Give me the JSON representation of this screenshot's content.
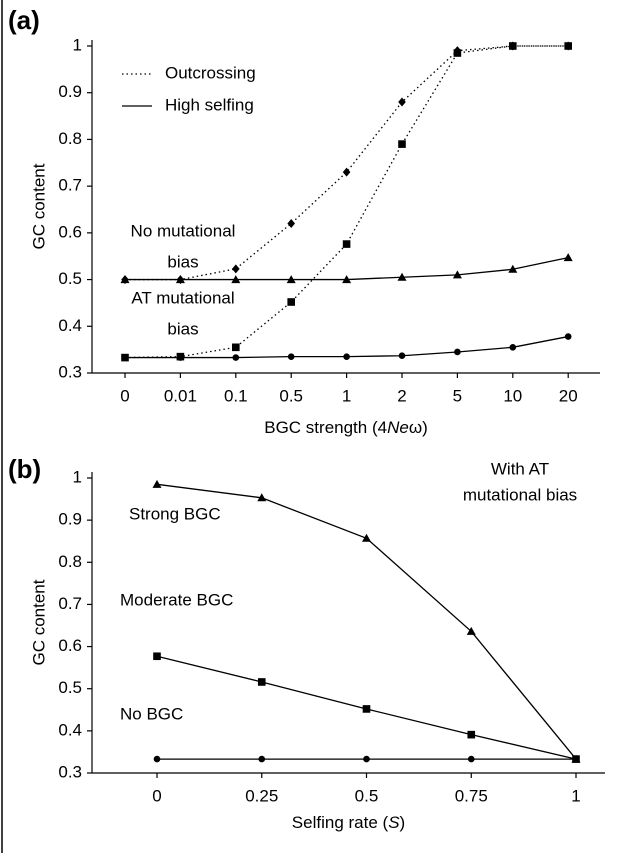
{
  "chart_data": [
    {
      "type": "line",
      "panel_label": "(a)",
      "ylabel": "GC content",
      "xlabel": [
        "BGC strength (4",
        "Ne",
        "ω)"
      ],
      "categories": [
        "0",
        "0.01",
        "0.1",
        "0.5",
        "1",
        "2",
        "5",
        "10",
        "20"
      ],
      "ylim": [
        0.3,
        1
      ],
      "yticks": [
        0.3,
        0.4,
        0.5,
        0.6,
        0.7,
        0.8,
        0.9,
        1
      ],
      "color": "#000000",
      "legend": [
        {
          "name": "Outcrossing",
          "dash": "dotted"
        },
        {
          "name": "High selfing",
          "dash": "solid"
        }
      ],
      "series": [
        {
          "marker": "diamond",
          "dash": "dotted",
          "values": [
            0.5,
            0.5,
            0.523,
            0.62,
            0.73,
            0.88,
            0.99,
            1.0,
            1.0
          ]
        },
        {
          "marker": "square",
          "dash": "dotted",
          "values": [
            0.333,
            0.335,
            0.355,
            0.452,
            0.576,
            0.79,
            0.985,
            1.0,
            1.0
          ]
        },
        {
          "marker": "triangle",
          "dash": "solid",
          "values": [
            0.5,
            0.5,
            0.5,
            0.5,
            0.5,
            0.505,
            0.51,
            0.522,
            0.547
          ]
        },
        {
          "marker": "circle",
          "dash": "solid",
          "values": [
            0.333,
            0.333,
            0.333,
            0.335,
            0.335,
            0.337,
            0.345,
            0.355,
            0.378
          ]
        }
      ],
      "annotations": [
        {
          "lines": [
            "No mutational",
            "bias"
          ]
        },
        {
          "lines": [
            "AT mutational",
            "bias"
          ]
        }
      ]
    },
    {
      "type": "line",
      "panel_label": "(b)",
      "ylabel": "GC content",
      "xlabel": [
        "Selfing rate (",
        "S",
        ")"
      ],
      "categories": [
        "0",
        "0.25",
        "0.5",
        "0.75",
        "1"
      ],
      "ylim": [
        0.3,
        1
      ],
      "yticks": [
        0.3,
        0.4,
        0.5,
        0.6,
        0.7,
        0.8,
        0.9,
        1
      ],
      "color": "#000000",
      "series": [
        {
          "name": "Strong BGC",
          "marker": "triangle",
          "dash": "solid",
          "values": [
            0.985,
            0.953,
            0.857,
            0.636,
            0.333
          ]
        },
        {
          "name": "Moderate BGC",
          "marker": "square",
          "dash": "solid",
          "values": [
            0.577,
            0.516,
            0.452,
            0.391,
            0.333
          ]
        },
        {
          "name": "No BGC",
          "marker": "circle",
          "dash": "solid",
          "values": [
            0.333,
            0.333,
            0.333,
            0.333,
            0.333
          ]
        }
      ],
      "annotations": [
        {
          "lines": [
            "With AT",
            "mutational bias"
          ]
        }
      ]
    }
  ]
}
